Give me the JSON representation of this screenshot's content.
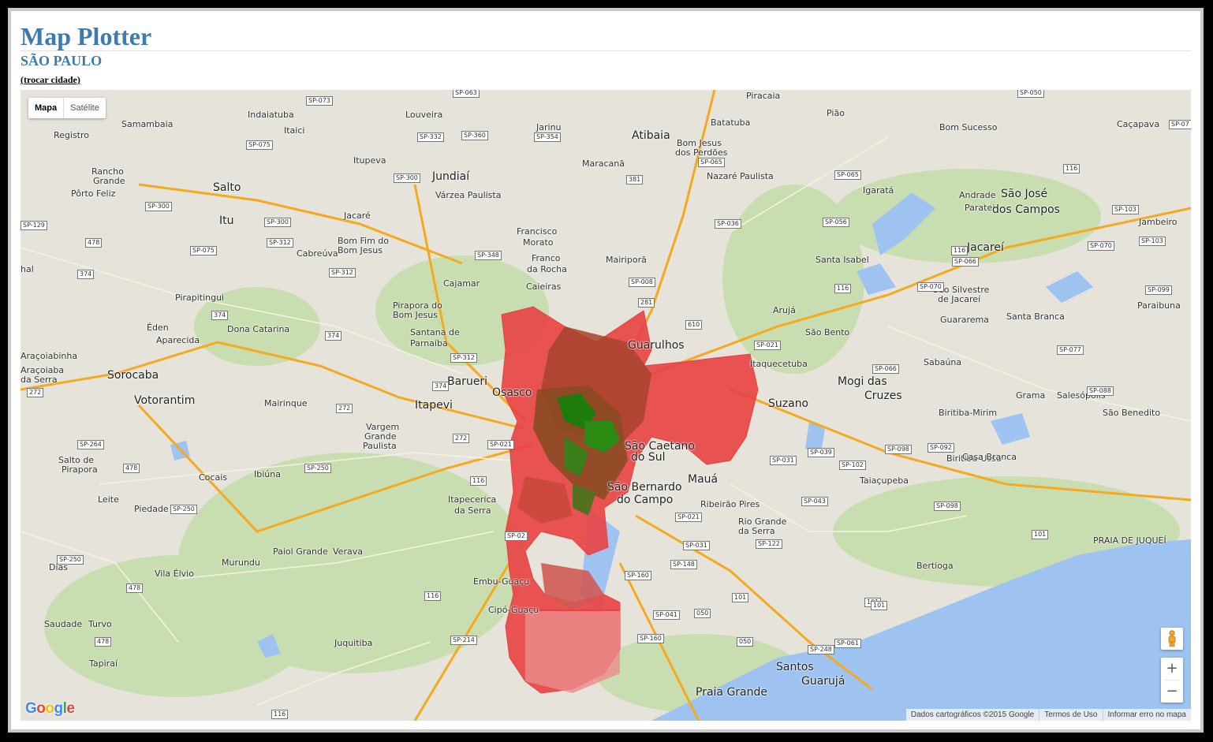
{
  "header": {
    "title": "Map Plotter",
    "city": "SÃO PAULO",
    "change_city": "(trocar cidade)"
  },
  "map": {
    "type_buttons": {
      "map": "Mapa",
      "satellite": "Satélite"
    },
    "zoom": {
      "in": "+",
      "out": "−"
    },
    "attribution": {
      "data": "Dados cartográficos ©2015 Google",
      "terms": "Termos de Uso",
      "report": "Informar erro no mapa"
    },
    "logo": "Google",
    "colors": {
      "region_high": "#e84141",
      "region_mid": "#8b4a23",
      "region_low": "#2a8a12",
      "water": "#9ec3f0",
      "land": "#e6e3da",
      "vegetation": "#c9deb0",
      "road": "#f4a91e"
    },
    "places": [
      {
        "name": "Indaiatuba"
      },
      {
        "name": "Itaici"
      },
      {
        "name": "Samambaia"
      },
      {
        "name": "Registro"
      },
      {
        "name": "Louveira"
      },
      {
        "name": "Jarinu"
      },
      {
        "name": "Atibaia"
      },
      {
        "name": "Piracaia"
      },
      {
        "name": "Batatuba"
      },
      {
        "name": "Pião"
      },
      {
        "name": "Bom Sucesso"
      },
      {
        "name": "Caçapava"
      },
      {
        "name": "Bom Jesus"
      },
      {
        "name": "dos Perdões"
      },
      {
        "name": "Itupeva"
      },
      {
        "name": "Maracanã"
      },
      {
        "name": "Nazaré Paulista"
      },
      {
        "name": "Rancho"
      },
      {
        "name": "Grande"
      },
      {
        "name": "Pôrto Feliz"
      },
      {
        "name": "Salto"
      },
      {
        "name": "Jundiaí"
      },
      {
        "name": "Várzea Paulista"
      },
      {
        "name": "Igaratá"
      },
      {
        "name": "Andrade"
      },
      {
        "name": "Paratei"
      },
      {
        "name": "São José"
      },
      {
        "name": "dos Campos"
      },
      {
        "name": "Itu"
      },
      {
        "name": "Jacaré"
      },
      {
        "name": "Jambeiro"
      },
      {
        "name": "Francisco"
      },
      {
        "name": "Morato"
      },
      {
        "name": "Bom Fim do"
      },
      {
        "name": "Bom Jesus"
      },
      {
        "name": "Cabreúva"
      },
      {
        "name": "Franco"
      },
      {
        "name": "da Rocha"
      },
      {
        "name": "Mairiporã"
      },
      {
        "name": "Santa Isabel"
      },
      {
        "name": "Jacareí"
      },
      {
        "name": "hal"
      },
      {
        "name": "Cajamar"
      },
      {
        "name": "Caieiras"
      },
      {
        "name": "São Silvestre"
      },
      {
        "name": "de Jacareí"
      },
      {
        "name": "Paraibuna"
      },
      {
        "name": "Pirapitingui"
      },
      {
        "name": "Pirapora do"
      },
      {
        "name": "Bom Jesus"
      },
      {
        "name": "Arujá"
      },
      {
        "name": "Guararema"
      },
      {
        "name": "Santa Branca"
      },
      {
        "name": "Éden"
      },
      {
        "name": "Dona Catarina"
      },
      {
        "name": "Aparecida"
      },
      {
        "name": "Santana de"
      },
      {
        "name": "Parnaíba"
      },
      {
        "name": "Guarulhos"
      },
      {
        "name": "São Bento"
      },
      {
        "name": "Araçoiabinha"
      },
      {
        "name": "Itaquecetuba"
      },
      {
        "name": "Sabaúna"
      },
      {
        "name": "Araçoiaba"
      },
      {
        "name": "da Serra"
      },
      {
        "name": "Sorocaba"
      },
      {
        "name": "Barueri"
      },
      {
        "name": "Osasco"
      },
      {
        "name": "Mogi das"
      },
      {
        "name": "Cruzes"
      },
      {
        "name": "Grama"
      },
      {
        "name": "Salesópolis"
      },
      {
        "name": "Votorantim"
      },
      {
        "name": "Mairinque"
      },
      {
        "name": "Itapevi"
      },
      {
        "name": "Suzano"
      },
      {
        "name": "São Benedito"
      },
      {
        "name": "Vargem"
      },
      {
        "name": "Grande"
      },
      {
        "name": "Paulista"
      },
      {
        "name": "Biritiba-Mirim"
      },
      {
        "name": "São Caetano"
      },
      {
        "name": "do Sul"
      },
      {
        "name": "Biritiba-Ussu"
      },
      {
        "name": "Salto de"
      },
      {
        "name": "Pirapora"
      },
      {
        "name": "Casa Branca"
      },
      {
        "name": "Cocais"
      },
      {
        "name": "Ibiúna"
      },
      {
        "name": "Mauá"
      },
      {
        "name": "Taiaçupeba"
      },
      {
        "name": "Leite"
      },
      {
        "name": "São Bernardo"
      },
      {
        "name": "do Campo"
      },
      {
        "name": "Itapecerica"
      },
      {
        "name": "da Serra"
      },
      {
        "name": "Ribeirão Pires"
      },
      {
        "name": "Piedade"
      },
      {
        "name": "Rio Grande"
      },
      {
        "name": "da Serra"
      },
      {
        "name": "Paiol Grande"
      },
      {
        "name": "Verava"
      },
      {
        "name": "Dias"
      },
      {
        "name": "Murundu"
      },
      {
        "name": "Vila Élvio"
      },
      {
        "name": "Bertioga"
      },
      {
        "name": "Embu-Guaçu"
      },
      {
        "name": "Cipó-Guaçu"
      },
      {
        "name": "Saudade"
      },
      {
        "name": "Turvo"
      },
      {
        "name": "Juquitiba"
      },
      {
        "name": "Tapiraí"
      },
      {
        "name": "Santos"
      },
      {
        "name": "Guarujá"
      },
      {
        "name": "Praia Grande"
      },
      {
        "name": "PRAIA DE JUQUEÍ"
      }
    ],
    "shields": [
      "SP-073",
      "SP-063",
      "SP-050",
      "SP-07",
      "SP-332",
      "SP-360",
      "SP-354",
      "SP-075",
      "SP-065",
      "SP-065",
      "116",
      "SP-300",
      "381",
      "SP-300",
      "SP-103",
      "SP-129",
      "SP-300",
      "SP-056",
      "SP-036",
      "SP-312",
      "478",
      "SP-075",
      "SP-348",
      "116",
      "SP-066",
      "SP-070",
      "SP-103",
      "374",
      "SP-312",
      "SP-008",
      "SP-070",
      "116",
      "SP-099",
      "281",
      "610",
      "374",
      "374",
      "SP-021",
      "SP-077",
      "SP-312",
      "272",
      "374",
      "SP-066",
      "SP-088",
      "272",
      "SP-021",
      "272",
      "SP-098",
      "SP-039",
      "SP-264",
      "SP-031",
      "SP-102",
      "SP-092",
      "478",
      "SP-250",
      "116",
      "SP-043",
      "SP-250",
      "SP-02",
      "SP-021",
      "SP-098",
      "SP-122",
      "SP-031",
      "101",
      "SP-250",
      "478",
      "SP-148",
      "SP-160",
      "116",
      "101",
      "SP-041",
      "050",
      "101",
      "SP-214",
      "SP-160",
      "050",
      "478",
      "SP-248",
      "SP-061",
      "101",
      "116"
    ]
  }
}
